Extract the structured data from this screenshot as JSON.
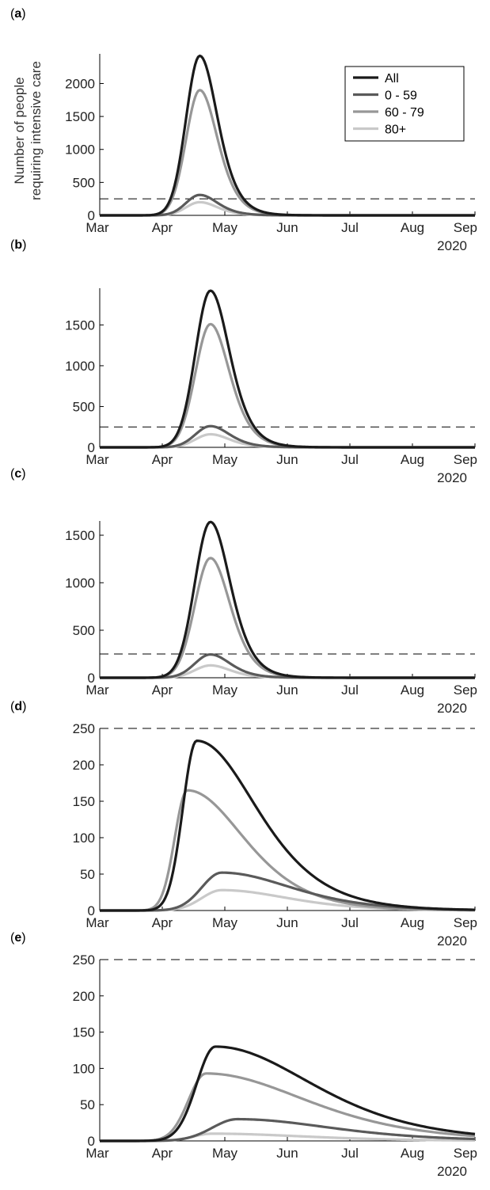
{
  "chart_data": [
    {
      "panel_label": "(a)",
      "type": "line",
      "ylabel": "Number of people\nrequiring intensive care",
      "ylim": [
        0,
        2450
      ],
      "yticks": [
        0,
        500,
        1000,
        1500,
        2000
      ],
      "xticklabels": [
        "Mar",
        "Apr",
        "May",
        "Jun",
        "Jul",
        "Aug",
        "Sep"
      ],
      "year_label": "2020",
      "threshold": 250,
      "legend": {
        "position": "top-right",
        "entries": [
          "All",
          "0 - 59",
          "60 - 79",
          "80+"
        ]
      },
      "series": [
        {
          "name": "All",
          "color": "#1a1a1a",
          "peak": 2420,
          "peak_month": 1.6,
          "rise_width": 0.22,
          "decay": 0.27
        },
        {
          "name": "0 - 59",
          "color": "#5a5a5a",
          "peak": 310,
          "peak_month": 1.6,
          "rise_width": 0.22,
          "decay": 0.27
        },
        {
          "name": "60 - 79",
          "color": "#979797",
          "peak": 1900,
          "peak_month": 1.6,
          "rise_width": 0.22,
          "decay": 0.27
        },
        {
          "name": "80+",
          "color": "#c9c9c9",
          "peak": 200,
          "peak_month": 1.6,
          "rise_width": 0.22,
          "decay": 0.27
        }
      ]
    },
    {
      "panel_label": "(b)",
      "type": "line",
      "ylabel": "",
      "ylim": [
        0,
        1950
      ],
      "yticks": [
        0,
        500,
        1000,
        1500
      ],
      "xticklabels": [
        "Mar",
        "Apr",
        "May",
        "Jun",
        "Jul",
        "Aug",
        "Sep"
      ],
      "year_label": "2020",
      "threshold": 250,
      "legend": null,
      "series": [
        {
          "name": "All",
          "color": "#1a1a1a",
          "peak": 1920,
          "peak_month": 1.77,
          "rise_width": 0.24,
          "decay": 0.29
        },
        {
          "name": "0 - 59",
          "color": "#5a5a5a",
          "peak": 260,
          "peak_month": 1.77,
          "rise_width": 0.24,
          "decay": 0.29
        },
        {
          "name": "60 - 79",
          "color": "#979797",
          "peak": 1510,
          "peak_month": 1.77,
          "rise_width": 0.24,
          "decay": 0.29
        },
        {
          "name": "80+",
          "color": "#c9c9c9",
          "peak": 160,
          "peak_month": 1.77,
          "rise_width": 0.24,
          "decay": 0.29
        }
      ]
    },
    {
      "panel_label": "(c)",
      "type": "line",
      "ylabel": "",
      "ylim": [
        0,
        1650
      ],
      "yticks": [
        0,
        500,
        1000,
        1500
      ],
      "xticklabels": [
        "Mar",
        "Apr",
        "May",
        "Jun",
        "Jul",
        "Aug",
        "Sep"
      ],
      "year_label": "2020",
      "threshold": 250,
      "legend": null,
      "series": [
        {
          "name": "All",
          "color": "#1a1a1a",
          "peak": 1640,
          "peak_month": 1.77,
          "rise_width": 0.25,
          "decay": 0.3
        },
        {
          "name": "0 - 59",
          "color": "#5a5a5a",
          "peak": 245,
          "peak_month": 1.77,
          "rise_width": 0.25,
          "decay": 0.3
        },
        {
          "name": "60 - 79",
          "color": "#979797",
          "peak": 1260,
          "peak_month": 1.77,
          "rise_width": 0.25,
          "decay": 0.3
        },
        {
          "name": "80+",
          "color": "#c9c9c9",
          "peak": 130,
          "peak_month": 1.77,
          "rise_width": 0.25,
          "decay": 0.3
        }
      ]
    },
    {
      "panel_label": "(d)",
      "type": "line",
      "ylabel": "",
      "ylim": [
        0,
        250
      ],
      "yticks": [
        0,
        50,
        100,
        150,
        200,
        250
      ],
      "xticklabels": [
        "Mar",
        "Apr",
        "May",
        "Jun",
        "Jul",
        "Aug",
        "Sep"
      ],
      "year_label": "2020",
      "threshold": 250,
      "legend": null,
      "series": [
        {
          "name": "All",
          "color": "#1a1a1a",
          "peak": 233,
          "peak_month": 1.55,
          "rise_width": 0.22,
          "decay": 0.9
        },
        {
          "name": "0 - 59",
          "color": "#5a5a5a",
          "peak": 52,
          "peak_month": 1.95,
          "rise_width": 0.32,
          "decay": 1.05
        },
        {
          "name": "60 - 79",
          "color": "#979797",
          "peak": 165,
          "peak_month": 1.4,
          "rise_width": 0.2,
          "decay": 0.85
        },
        {
          "name": "80+",
          "color": "#c9c9c9",
          "peak": 28,
          "peak_month": 1.95,
          "rise_width": 0.32,
          "decay": 1.0
        }
      ]
    },
    {
      "panel_label": "(e)",
      "type": "line",
      "ylabel": "",
      "ylim": [
        0,
        250
      ],
      "yticks": [
        0,
        50,
        100,
        150,
        200,
        250
      ],
      "xticklabels": [
        "Mar",
        "Apr",
        "May",
        "Jun",
        "Jul",
        "Aug",
        "Sep"
      ],
      "year_label": "2020",
      "threshold": 250,
      "legend": null,
      "series": [
        {
          "name": "All",
          "color": "#1a1a1a",
          "peak": 130,
          "peak_month": 1.85,
          "rise_width": 0.3,
          "decay": 1.45
        },
        {
          "name": "0 - 59",
          "color": "#5a5a5a",
          "peak": 30,
          "peak_month": 2.2,
          "rise_width": 0.4,
          "decay": 1.4
        },
        {
          "name": "60 - 79",
          "color": "#979797",
          "peak": 93,
          "peak_month": 1.7,
          "rise_width": 0.28,
          "decay": 1.5
        },
        {
          "name": "80+",
          "color": "#c9c9c9",
          "peak": 10,
          "peak_month": 1.8,
          "rise_width": 0.3,
          "decay": 1.4
        }
      ]
    }
  ]
}
